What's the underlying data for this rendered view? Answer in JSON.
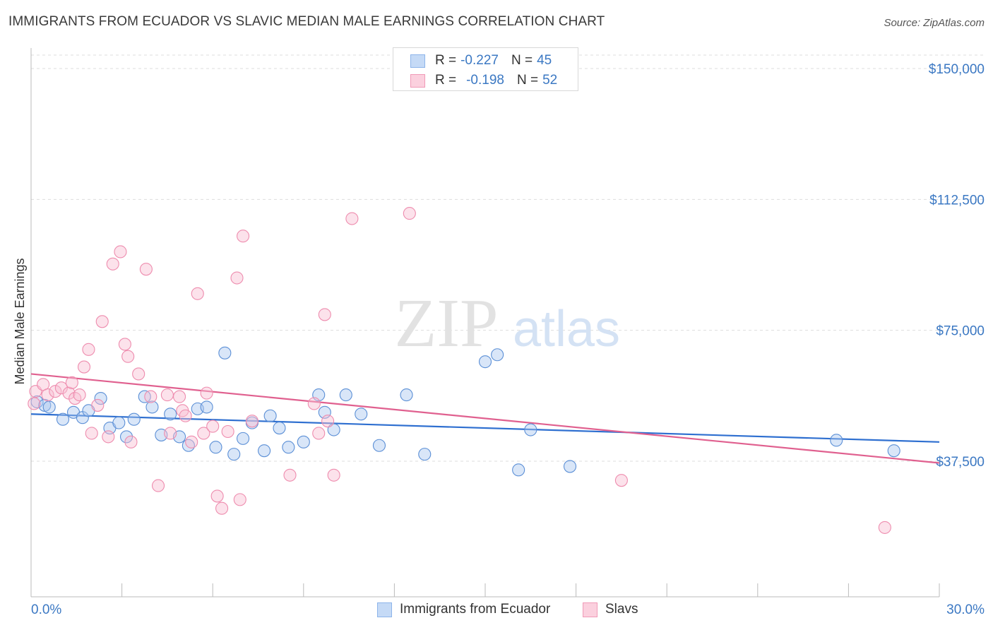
{
  "title": "IMMIGRANTS FROM ECUADOR VS SLAVIC MEDIAN MALE EARNINGS CORRELATION CHART",
  "source": "Source: ZipAtlas.com",
  "watermark": {
    "zip": "ZIP",
    "atlas": "atlas"
  },
  "legend": {
    "rows": [
      {
        "r_label": "R =",
        "r_value": "-0.227",
        "n_label": "N =",
        "n_value": "45",
        "color": "#8db4ea",
        "fill": "#c5daf6"
      },
      {
        "r_label": "R =",
        "r_value": "-0.198",
        "n_label": "N =",
        "n_value": "52",
        "color": "#f09ab7",
        "fill": "#fbd0de"
      }
    ]
  },
  "bottom_legend": [
    {
      "label": "Immigrants from Ecuador",
      "color": "#8db4ea",
      "fill": "#c5daf6"
    },
    {
      "label": "Slavs",
      "color": "#f09ab7",
      "fill": "#fbd0de"
    }
  ],
  "chart_data": {
    "type": "scatter",
    "ylabel": "Median Male Earnings",
    "xlim": [
      0,
      30
    ],
    "ylim": [
      0,
      152000
    ],
    "x_tick_labels": [
      "0.0%",
      "30.0%"
    ],
    "y_ticks": [
      37500,
      75000,
      112500,
      150000
    ],
    "y_tick_labels": [
      "$37,500",
      "$75,000",
      "$112,500",
      "$150,000"
    ],
    "grid": true,
    "legend_position": "top-center",
    "series": [
      {
        "name": "Immigrants from Ecuador",
        "color": "#5b8fd6",
        "line_color": "#2e6fd0",
        "trend": {
          "x": [
            0,
            30
          ],
          "y": [
            51000,
            43000
          ]
        },
        "points": [
          [
            0.2,
            54500
          ],
          [
            0.45,
            53500
          ],
          [
            0.6,
            53000
          ],
          [
            1.05,
            49500
          ],
          [
            1.4,
            51500
          ],
          [
            1.7,
            50000
          ],
          [
            1.9,
            52000
          ],
          [
            2.3,
            55500
          ],
          [
            2.6,
            47000
          ],
          [
            2.9,
            48500
          ],
          [
            3.15,
            44500
          ],
          [
            3.4,
            49500
          ],
          [
            3.75,
            56000
          ],
          [
            4.0,
            53000
          ],
          [
            4.3,
            45000
          ],
          [
            4.6,
            51000
          ],
          [
            4.9,
            44500
          ],
          [
            5.2,
            42000
          ],
          [
            5.5,
            52500
          ],
          [
            5.8,
            53000
          ],
          [
            6.1,
            41500
          ],
          [
            6.4,
            68500
          ],
          [
            6.7,
            39500
          ],
          [
            7.0,
            44000
          ],
          [
            7.3,
            48500
          ],
          [
            7.7,
            40500
          ],
          [
            7.9,
            50500
          ],
          [
            8.2,
            47000
          ],
          [
            8.5,
            41500
          ],
          [
            9.0,
            43000
          ],
          [
            9.5,
            56500
          ],
          [
            9.7,
            51500
          ],
          [
            10.0,
            46500
          ],
          [
            10.4,
            56500
          ],
          [
            10.9,
            51000
          ],
          [
            11.5,
            42000
          ],
          [
            12.4,
            56500
          ],
          [
            13.0,
            39500
          ],
          [
            15.0,
            66000
          ],
          [
            15.4,
            68000
          ],
          [
            16.1,
            35000
          ],
          [
            16.5,
            46500
          ],
          [
            17.8,
            36000
          ],
          [
            26.6,
            43500
          ],
          [
            28.5,
            40500
          ]
        ]
      },
      {
        "name": "Slavs",
        "color": "#ee8cae",
        "line_color": "#e0608f",
        "trend": {
          "x": [
            0,
            30
          ],
          "y": [
            62500,
            37000
          ]
        },
        "points": [
          [
            0.15,
            57500
          ],
          [
            0.4,
            59500
          ],
          [
            0.55,
            56500
          ],
          [
            0.8,
            57500
          ],
          [
            1.0,
            58500
          ],
          [
            1.25,
            57000
          ],
          [
            1.35,
            60000
          ],
          [
            1.45,
            55500
          ],
          [
            1.6,
            56500
          ],
          [
            1.75,
            64500
          ],
          [
            1.9,
            69500
          ],
          [
            2.0,
            45500
          ],
          [
            2.2,
            53500
          ],
          [
            2.35,
            77500
          ],
          [
            2.55,
            44500
          ],
          [
            2.7,
            94000
          ],
          [
            2.95,
            97500
          ],
          [
            3.1,
            71000
          ],
          [
            3.2,
            67500
          ],
          [
            3.3,
            43000
          ],
          [
            3.55,
            62500
          ],
          [
            3.8,
            92500
          ],
          [
            3.95,
            56000
          ],
          [
            4.2,
            30500
          ],
          [
            4.5,
            56500
          ],
          [
            4.6,
            45500
          ],
          [
            4.9,
            56000
          ],
          [
            5.0,
            52000
          ],
          [
            5.1,
            50500
          ],
          [
            5.3,
            43000
          ],
          [
            5.5,
            85500
          ],
          [
            5.7,
            45500
          ],
          [
            5.8,
            57000
          ],
          [
            6.0,
            47500
          ],
          [
            6.15,
            27500
          ],
          [
            6.3,
            24000
          ],
          [
            6.5,
            46000
          ],
          [
            6.8,
            90000
          ],
          [
            6.9,
            26500
          ],
          [
            7.0,
            102000
          ],
          [
            7.3,
            49000
          ],
          [
            8.55,
            33500
          ],
          [
            9.35,
            54000
          ],
          [
            9.5,
            45500
          ],
          [
            9.7,
            79500
          ],
          [
            9.8,
            49000
          ],
          [
            10.0,
            33500
          ],
          [
            10.6,
            107000
          ],
          [
            12.5,
            108500
          ],
          [
            19.5,
            32000
          ],
          [
            28.2,
            18500
          ],
          [
            0.1,
            54000
          ]
        ]
      }
    ]
  }
}
